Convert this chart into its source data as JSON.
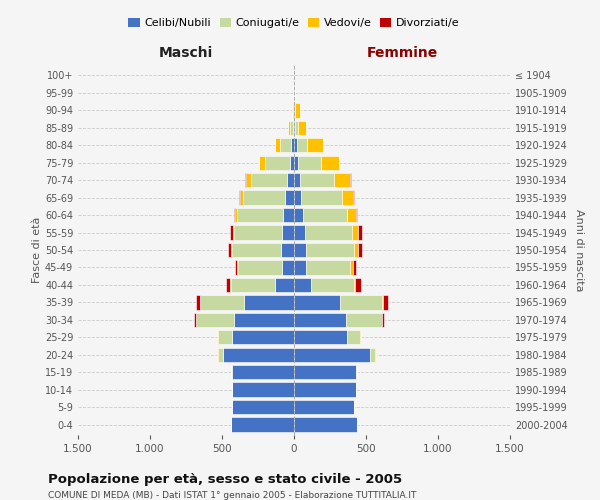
{
  "age_groups": [
    "0-4",
    "5-9",
    "10-14",
    "15-19",
    "20-24",
    "25-29",
    "30-34",
    "35-39",
    "40-44",
    "45-49",
    "50-54",
    "55-59",
    "60-64",
    "65-69",
    "70-74",
    "75-79",
    "80-84",
    "85-89",
    "90-94",
    "95-99",
    "100+"
  ],
  "birth_years": [
    "2000-2004",
    "1995-1999",
    "1990-1994",
    "1985-1989",
    "1980-1984",
    "1975-1979",
    "1970-1974",
    "1965-1969",
    "1960-1964",
    "1955-1959",
    "1950-1954",
    "1945-1949",
    "1940-1944",
    "1935-1939",
    "1930-1934",
    "1925-1929",
    "1920-1924",
    "1915-1919",
    "1910-1914",
    "1905-1909",
    "≤ 1904"
  ],
  "maschi": {
    "celibi": [
      440,
      430,
      430,
      430,
      490,
      430,
      420,
      350,
      130,
      80,
      90,
      85,
      75,
      65,
      50,
      30,
      20,
      10,
      5,
      2,
      0
    ],
    "coniugati": [
      0,
      0,
      2,
      5,
      40,
      100,
      260,
      300,
      310,
      310,
      340,
      330,
      320,
      290,
      250,
      170,
      80,
      20,
      5,
      2,
      0
    ],
    "vedovi": [
      0,
      0,
      0,
      0,
      5,
      2,
      2,
      3,
      5,
      5,
      5,
      10,
      15,
      20,
      35,
      40,
      35,
      15,
      5,
      2,
      0
    ],
    "divorziati": [
      0,
      0,
      0,
      0,
      3,
      5,
      15,
      25,
      30,
      15,
      20,
      20,
      10,
      5,
      2,
      0,
      0,
      0,
      0,
      0,
      0
    ]
  },
  "femmine": {
    "nubili": [
      440,
      420,
      430,
      430,
      530,
      370,
      360,
      320,
      115,
      80,
      80,
      75,
      60,
      50,
      40,
      30,
      20,
      10,
      5,
      2,
      0
    ],
    "coniugate": [
      0,
      0,
      2,
      5,
      35,
      90,
      250,
      290,
      300,
      310,
      340,
      330,
      310,
      280,
      240,
      160,
      70,
      20,
      5,
      2,
      0
    ],
    "vedove": [
      0,
      0,
      0,
      0,
      2,
      2,
      3,
      5,
      10,
      20,
      25,
      40,
      60,
      80,
      110,
      120,
      110,
      50,
      30,
      5,
      0
    ],
    "divorziate": [
      0,
      0,
      0,
      0,
      3,
      5,
      15,
      35,
      40,
      20,
      25,
      25,
      10,
      5,
      3,
      2,
      0,
      0,
      0,
      0,
      0
    ]
  },
  "colors": {
    "celibi": "#4472c4",
    "coniugati": "#c5d9a0",
    "vedovi": "#ffc000",
    "divorziati": "#c00000"
  },
  "xlim": 1500,
  "title": "Popolazione per età, sesso e stato civile - 2005",
  "subtitle": "COMUNE DI MEDA (MB) - Dati ISTAT 1° gennaio 2005 - Elaborazione TUTTITALIA.IT",
  "ylabel_left": "Fasce di età",
  "ylabel_right": "Anni di nascita",
  "xlabel_left": "Maschi",
  "xlabel_right": "Femmine",
  "legend_labels": [
    "Celibi/Nubili",
    "Coniugati/e",
    "Vedovi/e",
    "Divorziati/e"
  ],
  "background_color": "#f5f5f5",
  "grid_color": "#cccccc"
}
